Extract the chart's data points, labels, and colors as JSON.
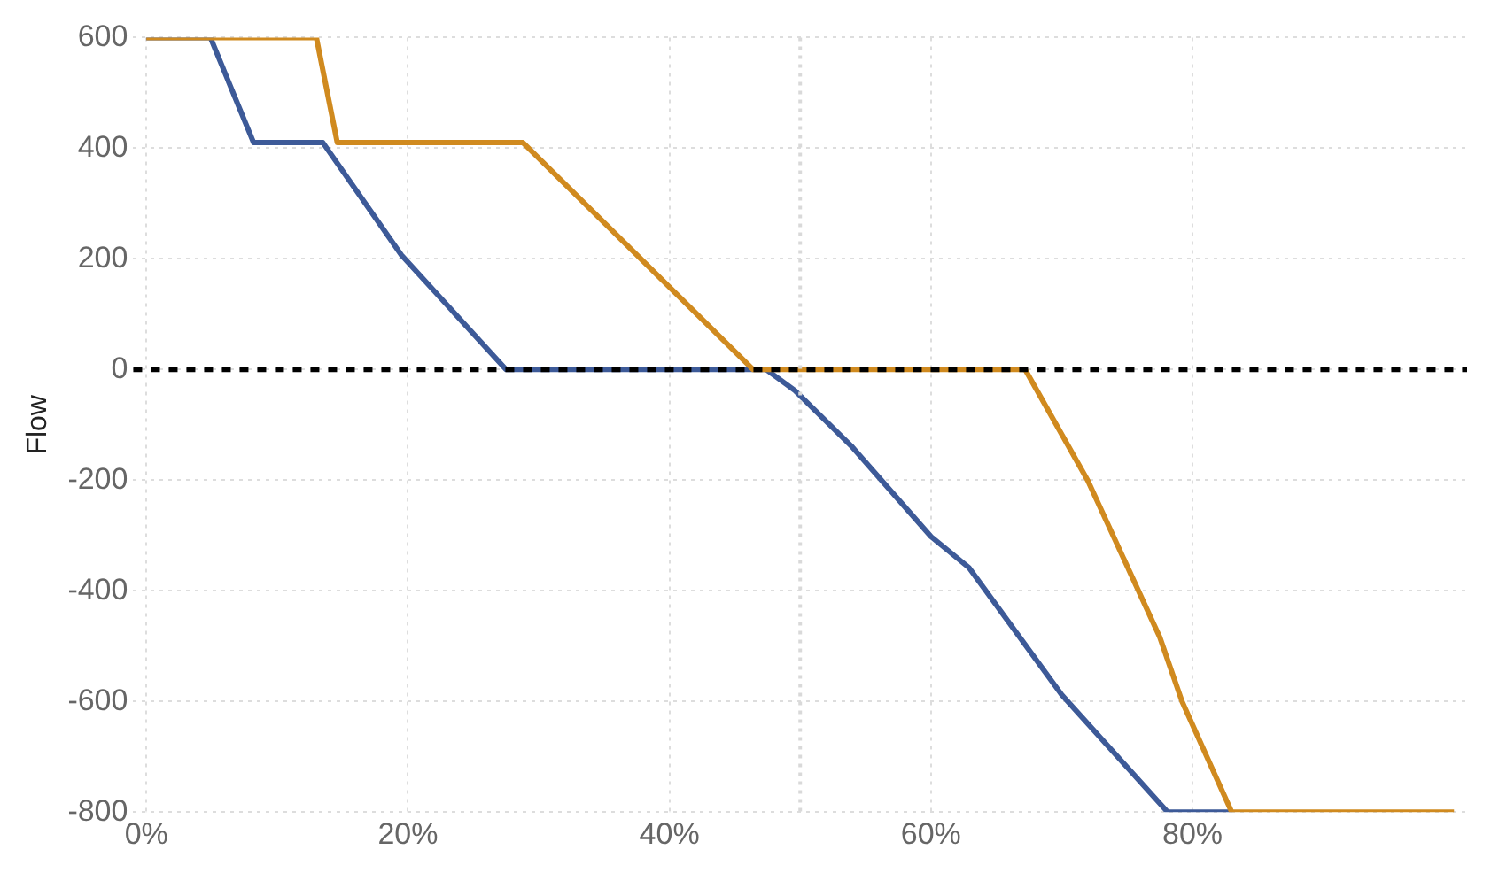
{
  "chart_data": {
    "type": "line",
    "ylabel": "Flow",
    "xlim": [
      -1,
      101
    ],
    "xticks": [
      {
        "value": 0,
        "label": "0%"
      },
      {
        "value": 20,
        "label": "20%"
      },
      {
        "value": 40,
        "label": "40%"
      },
      {
        "value": 60,
        "label": "60%"
      },
      {
        "value": 80,
        "label": "80%"
      }
    ],
    "ylim": [
      -800,
      600
    ],
    "yticks": [
      -800,
      -600,
      -400,
      -200,
      0,
      200,
      400,
      600
    ],
    "grid": true,
    "legend": false,
    "marker": "none",
    "line_style": "solid",
    "ref_lines": [
      {
        "axis": "y",
        "value": 0,
        "color": "#000000",
        "line_style": "dashed"
      },
      {
        "axis": "x",
        "value": 50,
        "color": "#d9d9d9",
        "line_style": "dotted"
      }
    ],
    "series": [
      {
        "color": "#3d5a98",
        "x": [
          0,
          4.9,
          8.2,
          13.5,
          19.5,
          27.5,
          47.4,
          49.6,
          53.9,
          60,
          62.9,
          70,
          78.1,
          83
        ],
        "values": [
          600,
          600,
          410,
          410,
          207,
          0,
          0,
          -38,
          -138,
          -302,
          -358,
          -588,
          -800,
          -800
        ]
      },
      {
        "color": "#d08a1f",
        "x": [
          0,
          13,
          14.6,
          28.8,
          46.4,
          67.2,
          72,
          77.5,
          79.2,
          83,
          100
        ],
        "values": [
          600,
          600,
          410,
          410,
          0,
          0,
          -201,
          -484,
          -600,
          -800,
          -800
        ]
      }
    ]
  }
}
